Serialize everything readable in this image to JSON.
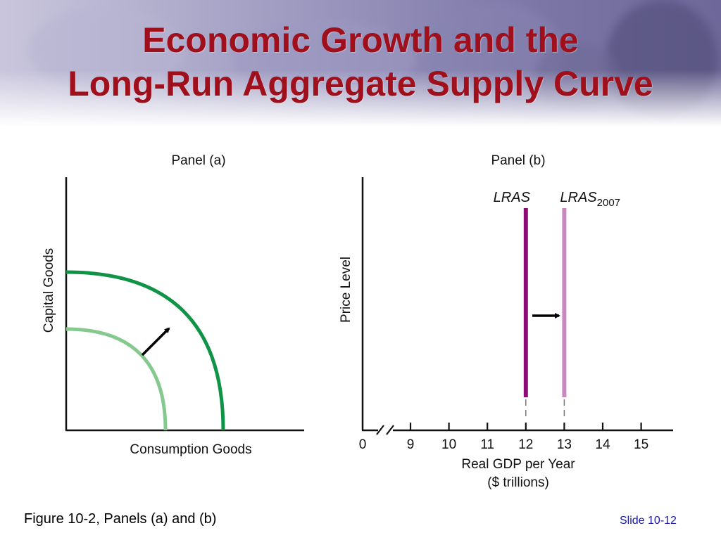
{
  "slide": {
    "title_line1": "Economic Growth and the",
    "title_line2": "Long-Run Aggregate Supply Curve",
    "caption": "Figure 10-2, Panels (a) and (b)",
    "slide_number": "Slide 10-12"
  },
  "colors": {
    "title": "#a0101c",
    "ppf_outer": "#0f9447",
    "ppf_inner": "#86c98f",
    "lras": "#8b0c76",
    "lras_2007": "#c989bf",
    "slide_number": "#1a1aa0"
  },
  "chart_data": [
    {
      "type": "line",
      "panel_title": "Panel (a)",
      "xlabel": "Consumption Goods",
      "ylabel": "Capital Goods",
      "series": [],
      "curves": [
        {
          "kind": "production-possibilities-curve",
          "position": "inner"
        },
        {
          "kind": "production-possibilities-curve",
          "position": "outer"
        }
      ],
      "annotation": "arrow showing outward shift",
      "grid": false
    },
    {
      "type": "line",
      "panel_title": "Panel (b)",
      "xlabel_line1": "Real GDP per Year",
      "xlabel_line2": "($ trillions)",
      "ylabel": "Price Level",
      "x_ticks": [
        "0",
        "9",
        "10",
        "11",
        "12",
        "13",
        "14",
        "15"
      ],
      "axis_break": true,
      "series": [
        {
          "name": "LRAS",
          "x": 12
        },
        {
          "name": "LRAS",
          "subscript": "2007",
          "x": 13
        }
      ],
      "annotation": "arrow showing rightward shift",
      "grid": false
    }
  ]
}
